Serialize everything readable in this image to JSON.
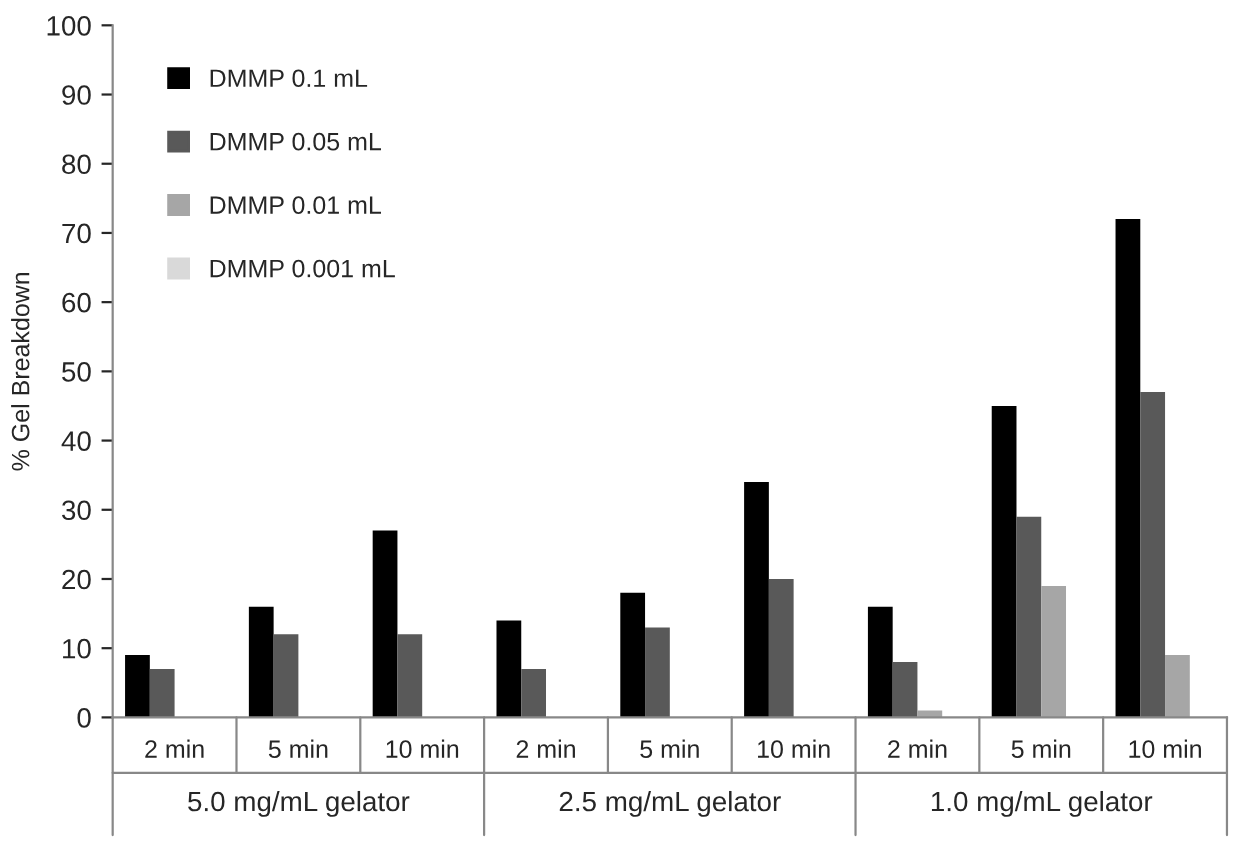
{
  "chart_data": {
    "type": "bar",
    "ylabel": "% Gel Breakdown",
    "categories": [
      "2 min",
      "5 min",
      "10 min",
      "2 min",
      "5 min",
      "10 min",
      "2 min",
      "5 min",
      "10 min"
    ],
    "series": [
      {
        "name": "DMMP 0.1 mL",
        "color": "#000000",
        "values": [
          9,
          16,
          27,
          14,
          18,
          34,
          16,
          45,
          72
        ]
      },
      {
        "name": "DMMP 0.05 mL",
        "color": "#595959",
        "values": [
          7,
          12,
          12,
          7,
          13,
          20,
          8,
          29,
          47
        ]
      },
      {
        "name": "DMMP 0.01 mL",
        "color": "#a6a6a6",
        "values": [
          0,
          0,
          0,
          0,
          0,
          0,
          1,
          19,
          9
        ]
      },
      {
        "name": "DMMP 0.001 mL",
        "color": "#d9d9d9",
        "values": [
          0,
          0,
          0,
          0,
          0,
          0,
          0,
          0,
          0
        ]
      }
    ],
    "annotations": [
      "5.0 mg/mL gelator",
      "2.5 mg/mL gelator",
      "1.0 mg/mL gelator"
    ],
    "ylim": [
      0,
      100
    ],
    "yticks": [
      0,
      10,
      20,
      30,
      40,
      50,
      60,
      70,
      80,
      90,
      100
    ],
    "grid": false,
    "legend": "top left"
  }
}
